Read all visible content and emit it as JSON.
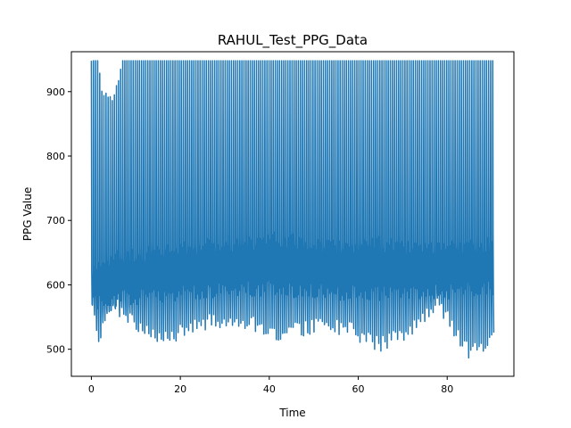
{
  "chart_data": {
    "type": "line",
    "title": "RAHUL_Test_PPG_Data",
    "xlabel": "Time",
    "ylabel": "PPG Value",
    "xlim": [
      -4.5,
      95
    ],
    "ylim": [
      458,
      962
    ],
    "xticks": [
      0,
      20,
      40,
      60,
      80
    ],
    "yticks": [
      500,
      600,
      700,
      800,
      900
    ],
    "grid": false,
    "legend": "none",
    "color": "#1f77b4",
    "sampling": {
      "x_start": 0,
      "x_end": 90.5,
      "cycle_period_s": 0.47,
      "peak_cap": 948,
      "samples_per_cycle": 6
    },
    "envelope_keypoints": [
      {
        "t": 0,
        "max": 948,
        "min": 572,
        "band_top": 620,
        "band_bottom": 575
      },
      {
        "t": 1.5,
        "max": 948,
        "min": 510,
        "band_top": 625,
        "band_bottom": 560
      },
      {
        "t": 2.5,
        "max": 900,
        "min": 515,
        "band_top": 640,
        "band_bottom": 565
      },
      {
        "t": 5,
        "max": 895,
        "min": 560,
        "band_top": 645,
        "band_bottom": 565
      },
      {
        "t": 7,
        "max": 948,
        "min": 545,
        "band_top": 650,
        "band_bottom": 570
      },
      {
        "t": 15,
        "max": 948,
        "min": 500,
        "band_top": 655,
        "band_bottom": 575
      },
      {
        "t": 25,
        "max": 948,
        "min": 530,
        "band_top": 665,
        "band_bottom": 580
      },
      {
        "t": 35,
        "max": 948,
        "min": 530,
        "band_top": 670,
        "band_bottom": 585
      },
      {
        "t": 42,
        "max": 948,
        "min": 510,
        "band_top": 675,
        "band_bottom": 585
      },
      {
        "t": 50,
        "max": 948,
        "min": 525,
        "band_top": 668,
        "band_bottom": 580
      },
      {
        "t": 57,
        "max": 948,
        "min": 522,
        "band_top": 665,
        "band_bottom": 578
      },
      {
        "t": 65,
        "max": 948,
        "min": 495,
        "band_top": 668,
        "band_bottom": 578
      },
      {
        "t": 72,
        "max": 948,
        "min": 520,
        "band_top": 660,
        "band_bottom": 578
      },
      {
        "t": 78,
        "max": 948,
        "min": 560,
        "band_top": 658,
        "band_bottom": 580
      },
      {
        "t": 85,
        "max": 948,
        "min": 482,
        "band_top": 665,
        "band_bottom": 582
      },
      {
        "t": 90.5,
        "max": 948,
        "min": 505,
        "band_top": 668,
        "band_bottom": 585
      }
    ]
  }
}
